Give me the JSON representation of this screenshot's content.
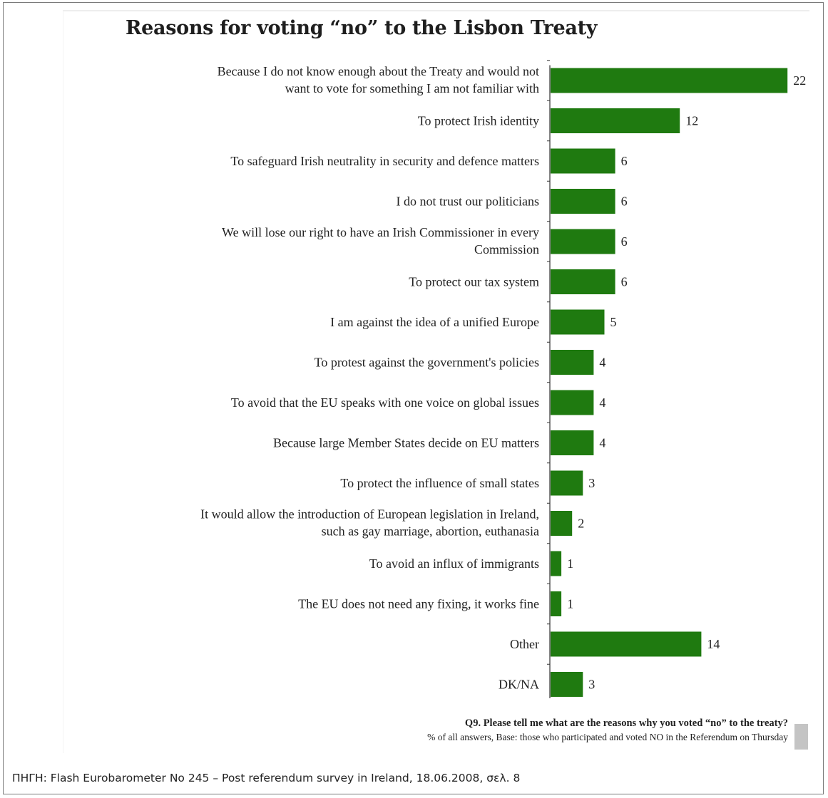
{
  "title": "Reasons for voting “no” to the Lisbon Treaty",
  "chart_data": {
    "type": "bar",
    "orientation": "horizontal",
    "bar_color": "#1f7a10",
    "categories": [
      [
        "Because I do not know enough about the Treaty and would not",
        "want to vote for something I am not familiar with"
      ],
      [
        "To protect Irish identity"
      ],
      [
        "To safeguard Irish neutrality in security and defence matters"
      ],
      [
        "I do not trust our politicians"
      ],
      [
        "We will lose our right to have an Irish Commissioner in every",
        "Commission"
      ],
      [
        "To protect our tax system"
      ],
      [
        "I am against the idea of a unified Europe"
      ],
      [
        "To protest against the government's policies"
      ],
      [
        "To avoid that the EU speaks with one voice on global issues"
      ],
      [
        "Because large Member States decide on EU matters"
      ],
      [
        "To protect the influence of small states"
      ],
      [
        "It would allow the introduction of European legislation in Ireland,",
        "such as gay marriage, abortion, euthanasia"
      ],
      [
        "To avoid an influx of immigrants"
      ],
      [
        "The EU does not need any fixing, it works fine"
      ],
      [
        "Other"
      ],
      [
        "DK/NA"
      ]
    ],
    "values": [
      22,
      12,
      6,
      6,
      6,
      6,
      5,
      4,
      4,
      4,
      3,
      2,
      1,
      1,
      14,
      3
    ],
    "value_labels": [
      "22",
      "12",
      "6",
      "6",
      "6",
      "6",
      "5",
      "4",
      "4",
      "4",
      "3",
      "2",
      "1",
      "1",
      "14",
      "3"
    ]
  },
  "notes": {
    "question": "Q9. Please tell me what are the reasons why you voted “no” to the treaty?",
    "base": "% of all answers, Base:  those who  participated and voted NO in the Referendum on Thursday"
  },
  "source": "ΠΗΓΗ: Flash Eurobarometer No 245 – Post referendum survey in Ireland, 18.06.2008, σελ. 8"
}
